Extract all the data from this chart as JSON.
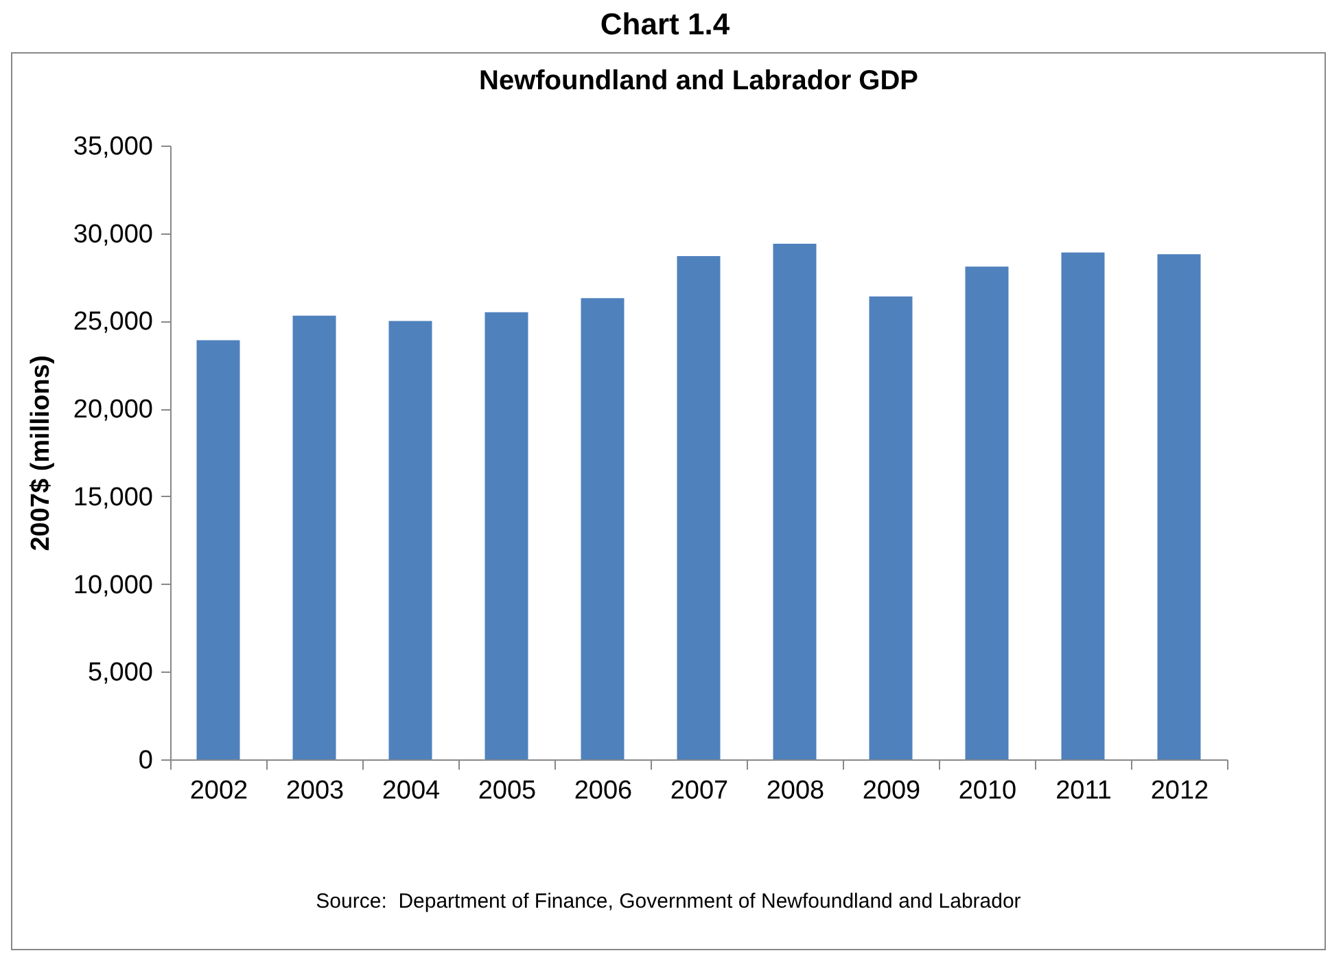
{
  "chart_data": {
    "type": "bar",
    "title": "Chart 1.4",
    "subtitle": "Newfoundland and Labrador GDP",
    "ylabel": "2007$ (millions)",
    "categories": [
      "2002",
      "2003",
      "2004",
      "2005",
      "2006",
      "2007",
      "2008",
      "2009",
      "2010",
      "2011",
      "2012"
    ],
    "values": [
      23900,
      25300,
      25000,
      25500,
      26300,
      28700,
      29400,
      26400,
      28100,
      28900,
      28800
    ],
    "color": "#4f81bd",
    "ylim": [
      0,
      35000
    ],
    "yticks": [
      {
        "value": 0,
        "label": "0"
      },
      {
        "value": 5000,
        "label": "5,000"
      },
      {
        "value": 10000,
        "label": "10,000"
      },
      {
        "value": 15000,
        "label": "15,000"
      },
      {
        "value": 20000,
        "label": "20,000"
      },
      {
        "value": 25000,
        "label": "25,000"
      },
      {
        "value": 30000,
        "label": "30,000"
      },
      {
        "value": 35000,
        "label": "35,000"
      }
    ],
    "grid": false,
    "legend": false,
    "annotations": [
      "Source:  Department of Finance, Government of Newfoundland and Labrador"
    ]
  }
}
